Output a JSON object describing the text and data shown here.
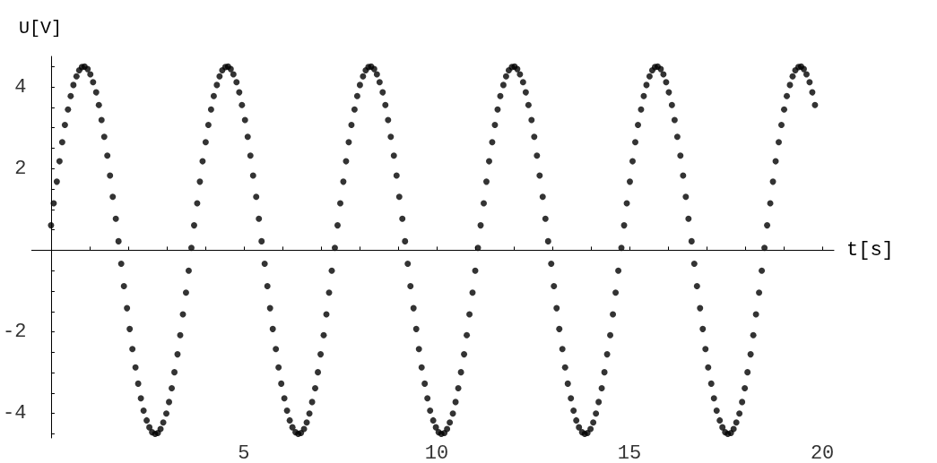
{
  "chart_data": {
    "type": "scatter",
    "xlabel": "t[s]",
    "ylabel": "U[V]",
    "color": "#000000",
    "marker": "circle",
    "xlim": [
      -0.5,
      20.3
    ],
    "ylim": [
      -4.6,
      4.75
    ],
    "xticks": [
      {
        "value": 1,
        "label": null
      },
      {
        "value": 2,
        "label": null
      },
      {
        "value": 3,
        "label": null
      },
      {
        "value": 4,
        "label": null
      },
      5,
      {
        "value": 6,
        "label": null
      },
      {
        "value": 7,
        "label": null
      },
      {
        "value": 8,
        "label": null
      },
      {
        "value": 9,
        "label": null
      },
      10,
      {
        "value": 11,
        "label": null
      },
      {
        "value": 12,
        "label": null
      },
      {
        "value": 13,
        "label": null
      },
      {
        "value": 14,
        "label": null
      },
      15,
      {
        "value": 16,
        "label": null
      },
      {
        "value": 17,
        "label": null
      },
      {
        "value": 18,
        "label": null
      },
      {
        "value": 19,
        "label": null
      },
      20
    ],
    "yticks": [
      {
        "value": -4.5,
        "label": null
      },
      -4,
      {
        "value": -3.5,
        "label": null
      },
      {
        "value": -3,
        "label": null
      },
      {
        "value": -2.5,
        "label": null
      },
      -2,
      {
        "value": -1.5,
        "label": null
      },
      {
        "value": -1,
        "label": null
      },
      {
        "value": -0.5,
        "label": null
      },
      {
        "value": 0.5,
        "label": null
      },
      {
        "value": 1,
        "label": null
      },
      {
        "value": 1.5,
        "label": null
      },
      2,
      {
        "value": 2.5,
        "label": null
      },
      {
        "value": 3,
        "label": null
      },
      {
        "value": 3.5,
        "label": null
      },
      4,
      {
        "value": 4.5,
        "label": null
      }
    ],
    "x": [
      0,
      0.07,
      0.15,
      0.22,
      0.29,
      0.36,
      0.44,
      0.51,
      0.58,
      0.66,
      0.73,
      0.8,
      0.87,
      0.95,
      1.02,
      1.09,
      1.17,
      1.24,
      1.31,
      1.38,
      1.46,
      1.53,
      1.6,
      1.68,
      1.75,
      1.82,
      1.89,
      1.97,
      2.04,
      2.11,
      2.19,
      2.26,
      2.33,
      2.4,
      2.48,
      2.55,
      2.62,
      2.7,
      2.77,
      2.84,
      2.91,
      2.99,
      3.06,
      3.13,
      3.2,
      3.28,
      3.35,
      3.42,
      3.5,
      3.57,
      3.64,
      3.71,
      3.79,
      3.86,
      3.93,
      4.01,
      4.08,
      4.15,
      4.22,
      4.3,
      4.37,
      4.44,
      4.52,
      4.59,
      4.66,
      4.73,
      4.81,
      4.88,
      4.95,
      5.03,
      5.1,
      5.17,
      5.24,
      5.32,
      5.39,
      5.46,
      5.54,
      5.61,
      5.68,
      5.75,
      5.83,
      5.9,
      5.97,
      6.05,
      6.12,
      6.19,
      6.26,
      6.34,
      6.41,
      6.48,
      6.56,
      6.63,
      6.7,
      6.77,
      6.85,
      6.92,
      6.99,
      7.07,
      7.14,
      7.21,
      7.28,
      7.36,
      7.43,
      7.5,
      7.58,
      7.65,
      7.72,
      7.79,
      7.87,
      7.94,
      8.01,
      8.09,
      8.16,
      8.23,
      8.3,
      8.38,
      8.45,
      8.52,
      8.6,
      8.67,
      8.74,
      8.81,
      8.89,
      8.96,
      9.03,
      9.11,
      9.18,
      9.25,
      9.32,
      9.4,
      9.47,
      9.54,
      9.61,
      9.69,
      9.76,
      9.83,
      9.91,
      9.98,
      10.05,
      10.12,
      10.2,
      10.27,
      10.34,
      10.42,
      10.49,
      10.56,
      10.63,
      10.71,
      10.78,
      10.85,
      10.93,
      11,
      11.07,
      11.14,
      11.22,
      11.29,
      11.36,
      11.44,
      11.51,
      11.58,
      11.65,
      11.73,
      11.8,
      11.87,
      11.95,
      12.02,
      12.09,
      12.16,
      12.24,
      12.31,
      12.38,
      12.46,
      12.53,
      12.6,
      12.67,
      12.75,
      12.82,
      12.89,
      12.97,
      13.04,
      13.11,
      13.18,
      13.26,
      13.33,
      13.4,
      13.48,
      13.55,
      13.62,
      13.69,
      13.77,
      13.84,
      13.91,
      13.99,
      14.06,
      14.13,
      14.2,
      14.28,
      14.35,
      14.42,
      14.5,
      14.57,
      14.64,
      14.71,
      14.79,
      14.86,
      14.93,
      15.01,
      15.08,
      15.15,
      15.22,
      15.3,
      15.37,
      15.44,
      15.52,
      15.59,
      15.66,
      15.73,
      15.81,
      15.88,
      15.95,
      16.02,
      16.1,
      16.17,
      16.24,
      16.32,
      16.39,
      16.46,
      16.53,
      16.61,
      16.68,
      16.75,
      16.83,
      16.9,
      16.97,
      17.04,
      17.12,
      17.19,
      17.26,
      17.34,
      17.41,
      17.48,
      17.55,
      17.63,
      17.7,
      17.77,
      17.85,
      17.92,
      17.99,
      18.06,
      18.14,
      18.21,
      18.28,
      18.36,
      18.43,
      18.5,
      18.57,
      18.65,
      18.72,
      18.79,
      18.87,
      18.94,
      19.01,
      19.08,
      19.16,
      19.23,
      19.3,
      19.38,
      19.45,
      19.52,
      19.59,
      19.67,
      19.74,
      19.81
    ],
    "values": [
      0.61,
      1.15,
      1.68,
      2.18,
      2.65,
      3.07,
      3.45,
      3.78,
      4.05,
      4.26,
      4.41,
      4.49,
      4.5,
      4.44,
      4.31,
      4.12,
      3.87,
      3.56,
      3.19,
      2.78,
      2.32,
      1.83,
      1.31,
      0.77,
      0.22,
      -0.33,
      -0.88,
      -1.42,
      -1.93,
      -2.42,
      -2.87,
      -3.27,
      -3.63,
      -3.93,
      -4.17,
      -4.34,
      -4.46,
      -4.5,
      -4.48,
      -4.38,
      -4.22,
      -4,
      -3.72,
      -3.38,
      -2.99,
      -2.55,
      -2.08,
      -1.57,
      -1.04,
      -0.5,
      0.06,
      0.61,
      1.15,
      1.68,
      2.18,
      2.65,
      3.07,
      3.45,
      3.78,
      4.05,
      4.26,
      4.41,
      4.49,
      4.5,
      4.44,
      4.31,
      4.12,
      3.87,
      3.56,
      3.19,
      2.78,
      2.32,
      1.83,
      1.31,
      0.77,
      0.22,
      -0.33,
      -0.88,
      -1.42,
      -1.93,
      -2.42,
      -2.87,
      -3.27,
      -3.63,
      -3.93,
      -4.17,
      -4.34,
      -4.46,
      -4.5,
      -4.48,
      -4.38,
      -4.22,
      -4,
      -3.72,
      -3.38,
      -2.99,
      -2.55,
      -2.08,
      -1.57,
      -1.04,
      -0.5,
      0.06,
      0.61,
      1.15,
      1.68,
      2.18,
      2.65,
      3.07,
      3.45,
      3.78,
      4.05,
      4.26,
      4.41,
      4.49,
      4.5,
      4.44,
      4.31,
      4.12,
      3.87,
      3.56,
      3.19,
      2.78,
      2.32,
      1.83,
      1.31,
      0.77,
      0.22,
      -0.33,
      -0.88,
      -1.42,
      -1.93,
      -2.42,
      -2.87,
      -3.27,
      -3.63,
      -3.93,
      -4.17,
      -4.34,
      -4.46,
      -4.5,
      -4.48,
      -4.38,
      -4.22,
      -4,
      -3.72,
      -3.38,
      -2.99,
      -2.55,
      -2.08,
      -1.57,
      -1.04,
      -0.5,
      0.06,
      0.61,
      1.15,
      1.68,
      2.18,
      2.65,
      3.07,
      3.45,
      3.78,
      4.05,
      4.26,
      4.41,
      4.49,
      4.5,
      4.44,
      4.31,
      4.12,
      3.87,
      3.56,
      3.19,
      2.78,
      2.32,
      1.83,
      1.31,
      0.77,
      0.22,
      -0.33,
      -0.88,
      -1.42,
      -1.93,
      -2.42,
      -2.87,
      -3.27,
      -3.63,
      -3.93,
      -4.17,
      -4.34,
      -4.46,
      -4.5,
      -4.48,
      -4.38,
      -4.22,
      -4,
      -3.72,
      -3.38,
      -2.99,
      -2.55,
      -2.08,
      -1.57,
      -1.04,
      -0.5,
      0.06,
      0.61,
      1.15,
      1.68,
      2.18,
      2.65,
      3.07,
      3.45,
      3.78,
      4.05,
      4.26,
      4.41,
      4.49,
      4.5,
      4.44,
      4.31,
      4.12,
      3.87,
      3.56,
      3.19,
      2.78,
      2.32,
      1.83,
      1.31,
      0.77,
      0.22,
      -0.33,
      -0.88,
      -1.42,
      -1.93,
      -2.42,
      -2.87,
      -3.27,
      -3.63,
      -3.93,
      -4.17,
      -4.34,
      -4.46,
      -4.5,
      -4.48,
      -4.38,
      -4.22,
      -4,
      -3.72,
      -3.38,
      -2.99,
      -2.55,
      -2.08,
      -1.57,
      -1.04,
      -0.5,
      0.06,
      0.61,
      1.15,
      1.68,
      2.18,
      2.65,
      3.07,
      3.45,
      3.78,
      4.05,
      4.26,
      4.41,
      4.49,
      4.5,
      4.44,
      4.31,
      4.12,
      3.87,
      3.56
    ]
  }
}
